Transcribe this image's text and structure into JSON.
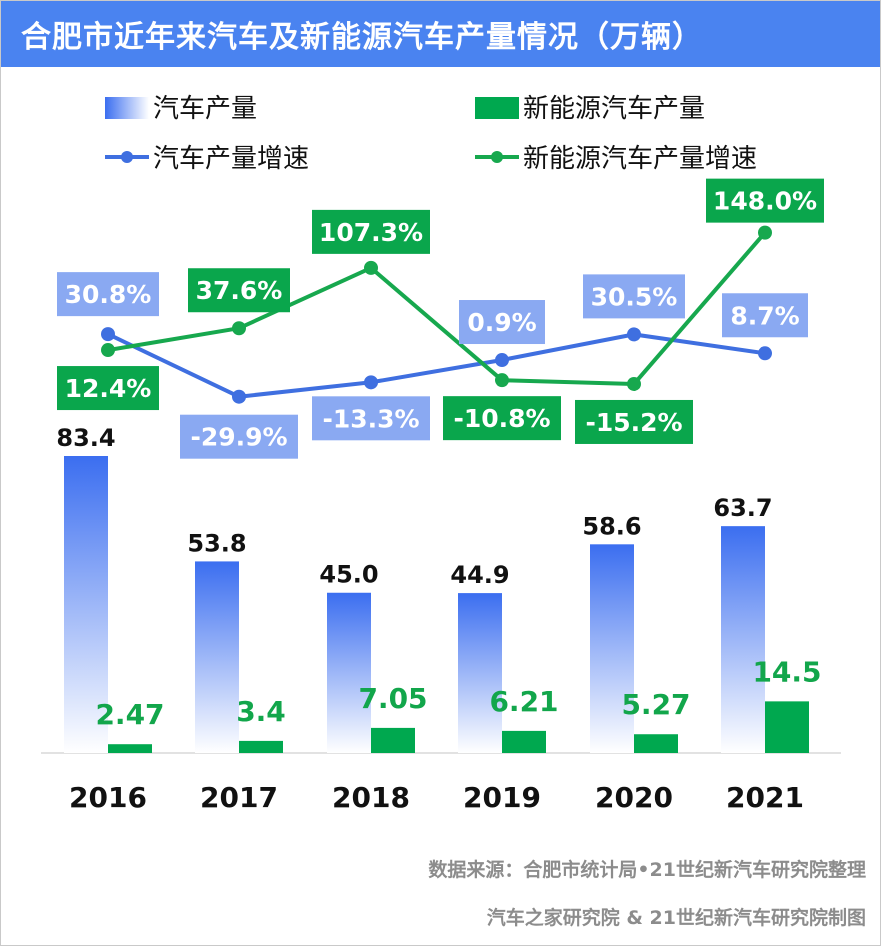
{
  "title": "合肥市近年来汽车及新能源汽车产量情况（万辆）",
  "source": {
    "line1": "数据来源：合肥市统计局•21世纪新汽车研究院整理",
    "line2": "汽车之家研究院 & 21世纪新汽车研究院制图"
  },
  "colors": {
    "title_bg": "#4a83f0",
    "car_bar_top": "#3b6ef0",
    "car_bar_bottom": "#ffffff",
    "nev_bar": "#00a84f",
    "car_line": "#3f6fe0",
    "nev_line": "#17a84e",
    "car_label_bg": "#8aa9f2",
    "nev_label_bg": "#0aa64c",
    "nev_value_text": "#12a64b"
  },
  "chart_data": {
    "type": "bar+line",
    "categories": [
      "2016",
      "2017",
      "2018",
      "2019",
      "2020",
      "2021"
    ],
    "legend": [
      "汽车产量",
      "新能源汽车产量",
      "汽车产量增速",
      "新能源汽车产量增速"
    ],
    "legend_position": "top",
    "grid": false,
    "bars": [
      {
        "name": "汽车产量",
        "values": [
          83.4,
          53.8,
          45.0,
          44.9,
          58.6,
          63.7
        ],
        "labels": [
          "83.4",
          "53.8",
          "45.0",
          "44.9",
          "58.6",
          "63.7"
        ]
      },
      {
        "name": "新能源汽车产量",
        "values": [
          2.47,
          3.4,
          7.05,
          6.21,
          5.27,
          14.5
        ],
        "labels": [
          "2.47",
          "3.4",
          "7.05",
          "6.21",
          "5.27",
          "14.5"
        ]
      }
    ],
    "lines": [
      {
        "name": "汽车产量增速",
        "values": [
          30.8,
          -29.9,
          -13.3,
          0.9,
          30.5,
          8.7
        ],
        "labels": [
          "30.8%",
          "-29.9%",
          "-13.3%",
          "0.9%",
          "30.5%",
          "8.7%"
        ]
      },
      {
        "name": "新能源汽车产量增速",
        "values": [
          12.4,
          37.6,
          107.3,
          -10.8,
          -15.2,
          148.0
        ],
        "labels": [
          "12.4%",
          "37.6%",
          "107.3%",
          "-10.8%",
          "-15.2%",
          "148.0%"
        ]
      }
    ]
  }
}
